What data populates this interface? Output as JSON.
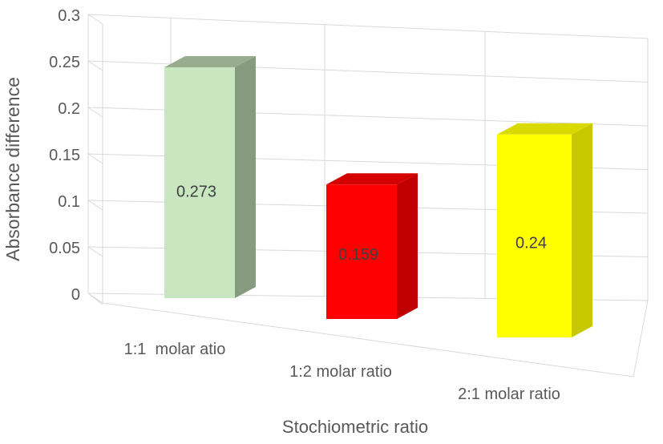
{
  "chart_data": {
    "type": "bar",
    "style": "3d-column",
    "categories": [
      "1:1  molar atio",
      "1:2 molar ratio",
      "2:1 molar ratio"
    ],
    "values": [
      0.273,
      0.159,
      0.24
    ],
    "data_labels": [
      "0.273",
      "0.159",
      "0.24"
    ],
    "xlabel": "Stochiometric ratio",
    "ylabel": "Absorbance difference",
    "ylim": [
      0,
      0.3
    ],
    "yticks": [
      "0",
      "0.05",
      "0.1",
      "0.15",
      "0.2",
      "0.25",
      "0.3"
    ],
    "grid": true,
    "legend": "none",
    "colors": {
      "bars": [
        {
          "front": "#c8e6c0",
          "side": "#879b7f",
          "top": "#98ac90"
        },
        {
          "front": "#ff0000",
          "side": "#c00000",
          "top": "#d40000"
        },
        {
          "front": "#ffff00",
          "side": "#c8c800",
          "top": "#dada00"
        }
      ],
      "grid": "#d9d9d9",
      "axis_text": "#595959",
      "label_text": "#404040"
    }
  }
}
